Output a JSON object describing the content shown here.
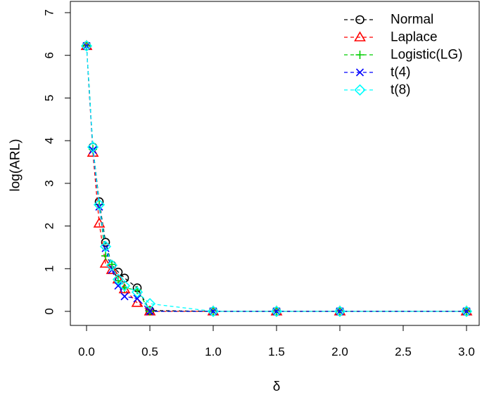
{
  "chart_data": {
    "type": "line",
    "title": "",
    "xlabel": "δ",
    "ylabel": "log(ARL)",
    "xlim": [
      0,
      3
    ],
    "ylim": [
      0,
      7
    ],
    "xticks": [
      0.0,
      0.5,
      1.0,
      1.5,
      2.0,
      2.5,
      3.0
    ],
    "xtick_labels": [
      "0.0",
      "0.5",
      "1.0",
      "1.5",
      "2.0",
      "2.5",
      "3.0"
    ],
    "yticks": [
      0,
      1,
      2,
      3,
      4,
      5,
      6,
      7
    ],
    "ytick_labels": [
      "0",
      "1",
      "2",
      "3",
      "4",
      "5",
      "6",
      "7"
    ],
    "legend_position": "top-right",
    "grid": false,
    "series": [
      {
        "name": "Normal",
        "color": "#000000",
        "marker": "circle",
        "x": [
          0,
          0.05,
          0.1,
          0.15,
          0.2,
          0.25,
          0.3,
          0.4,
          0.5,
          1.0,
          1.5,
          2.0,
          3.0
        ],
        "y": [
          6.22,
          3.85,
          2.57,
          1.62,
          1.08,
          0.92,
          0.78,
          0.55,
          0.02,
          0,
          0,
          0,
          0
        ]
      },
      {
        "name": "Laplace",
        "color": "#ff0000",
        "marker": "triangle",
        "x": [
          0,
          0.05,
          0.1,
          0.15,
          0.2,
          0.25,
          0.3,
          0.4,
          0.5,
          1.0,
          1.5,
          2.0,
          3.0
        ],
        "y": [
          6.22,
          3.72,
          2.06,
          1.12,
          0.97,
          0.75,
          0.52,
          0.2,
          0,
          0,
          0,
          0,
          0
        ]
      },
      {
        "name": "Logistic(LG)",
        "color": "#00cd00",
        "marker": "plus",
        "x": [
          0,
          0.05,
          0.1,
          0.15,
          0.2,
          0.25,
          0.3,
          0.4,
          0.5,
          1.0,
          1.5,
          2.0,
          3.0
        ],
        "y": [
          6.22,
          3.8,
          2.5,
          1.3,
          1.1,
          0.72,
          0.55,
          0.5,
          0,
          0,
          0,
          0,
          0
        ]
      },
      {
        "name": "t(4)",
        "color": "#0000ff",
        "marker": "cross",
        "x": [
          0,
          0.05,
          0.1,
          0.15,
          0.2,
          0.25,
          0.3,
          0.4,
          0.5,
          1.0,
          1.5,
          2.0,
          3.0
        ],
        "y": [
          6.22,
          3.78,
          2.45,
          1.48,
          0.97,
          0.6,
          0.35,
          0.3,
          0,
          0,
          0,
          0,
          0
        ]
      },
      {
        "name": "t(8)",
        "color": "#00ffff",
        "marker": "diamond",
        "x": [
          0,
          0.05,
          0.1,
          0.15,
          0.2,
          0.25,
          0.3,
          0.4,
          0.5,
          1.0,
          1.5,
          2.0,
          3.0
        ],
        "y": [
          6.22,
          3.85,
          2.5,
          1.52,
          1.08,
          0.75,
          0.6,
          0.45,
          0.18,
          0,
          0,
          0,
          0
        ]
      }
    ]
  }
}
